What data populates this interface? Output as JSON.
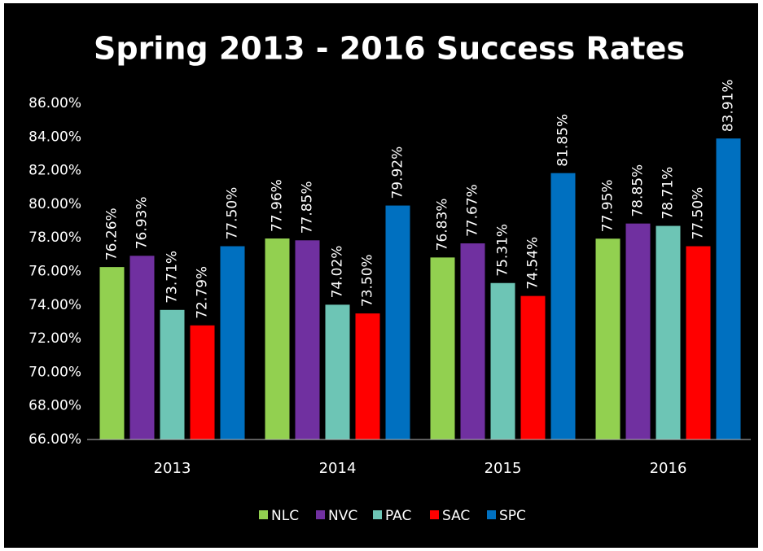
{
  "chart_data": {
    "type": "bar",
    "title": "Spring 2013 - 2016 Success Rates",
    "categories": [
      "2013",
      "2014",
      "2015",
      "2016"
    ],
    "series": [
      {
        "name": "NLC",
        "color": "#92d050",
        "values": [
          76.26,
          77.96,
          76.83,
          77.95
        ],
        "value_labels": [
          "76.26%",
          "77.96%",
          "76.83%",
          "77.95%"
        ]
      },
      {
        "name": "NVC",
        "color": "#7030a0",
        "values": [
          76.93,
          77.85,
          77.67,
          78.85
        ],
        "value_labels": [
          "76.93%",
          "77.85%",
          "77.67%",
          "78.85%"
        ]
      },
      {
        "name": "PAC",
        "color": "#6dc5b5",
        "values": [
          73.71,
          74.02,
          75.31,
          78.71
        ],
        "value_labels": [
          "73.71%",
          "74.02%",
          "75.31%",
          "78.71%"
        ]
      },
      {
        "name": "SAC",
        "color": "#ff0000",
        "values": [
          72.79,
          73.5,
          74.54,
          77.5
        ],
        "value_labels": [
          "72.79%",
          "73.50%",
          "74.54%",
          "77.50%"
        ]
      },
      {
        "name": "SPC",
        "color": "#0070c0",
        "values": [
          77.5,
          79.92,
          81.85,
          83.91
        ],
        "value_labels": [
          "77.50%",
          "79.92%",
          "81.85%",
          "83.91%"
        ]
      }
    ],
    "ylim": [
      66,
      86
    ],
    "yticks": [
      {
        "value": 66,
        "label": "66.00%"
      },
      {
        "value": 68,
        "label": "68.00%"
      },
      {
        "value": 70,
        "label": "70.00%"
      },
      {
        "value": 72,
        "label": "72.00%"
      },
      {
        "value": 74,
        "label": "74.00%"
      },
      {
        "value": 76,
        "label": "76.00%"
      },
      {
        "value": 78,
        "label": "78.00%"
      },
      {
        "value": 80,
        "label": "80.00%"
      },
      {
        "value": 82,
        "label": "82.00%"
      },
      {
        "value": 84,
        "label": "84.00%"
      },
      {
        "value": 86,
        "label": "86.00%"
      }
    ],
    "grid": false,
    "legend": "bottom"
  }
}
